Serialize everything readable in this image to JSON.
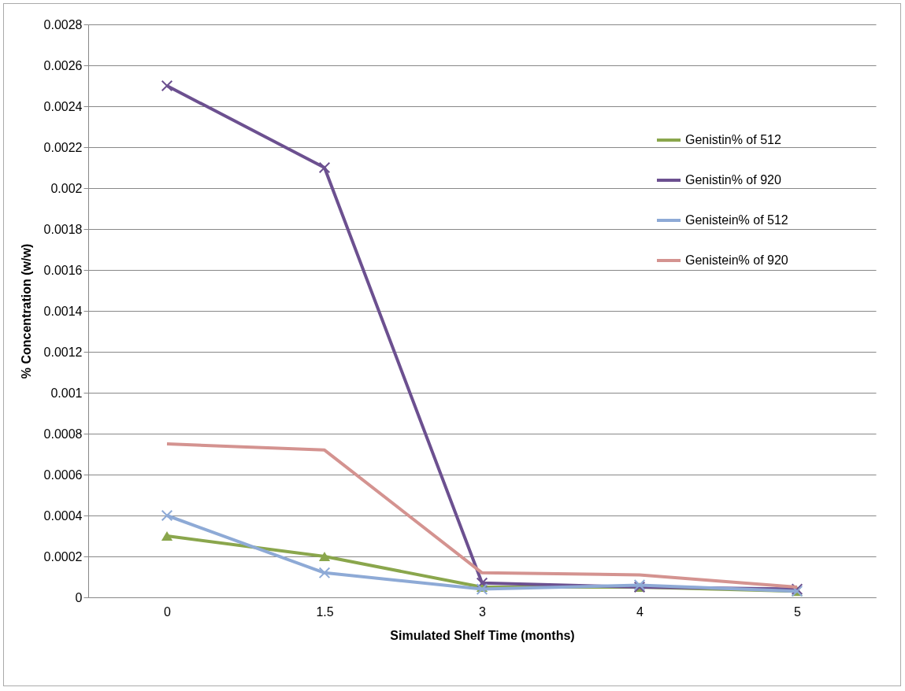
{
  "chart_data": {
    "type": "line",
    "xlabel": "Simulated Shelf Time (months)",
    "ylabel": "% Concentration (w/w)",
    "categories": [
      "0",
      "1.5",
      "3",
      "4",
      "5"
    ],
    "series": [
      {
        "name": "Genistin% of 512",
        "color": "#8aa64c",
        "marker": "triangle",
        "values": [
          0.0003,
          0.0002,
          5e-05,
          5e-05,
          3e-05
        ]
      },
      {
        "name": "Genistin% of 920",
        "color": "#6c5090",
        "marker": "cross",
        "values": [
          0.0025,
          0.0021,
          7e-05,
          5e-05,
          4e-05
        ]
      },
      {
        "name": "Genistein% of 512",
        "color": "#8eaad6",
        "marker": "cross",
        "values": [
          0.0004,
          0.00012,
          4e-05,
          6e-05,
          3e-05
        ]
      },
      {
        "name": "Genistein% of 920",
        "color": "#d49390",
        "marker": "none",
        "values": [
          0.00075,
          0.00072,
          0.00012,
          0.00011,
          5e-05
        ]
      }
    ],
    "ylim": [
      0,
      0.0028
    ],
    "yticks": [
      0,
      0.0002,
      0.0004,
      0.0006,
      0.0008,
      0.001,
      0.0012,
      0.0014,
      0.0016,
      0.0018,
      0.002,
      0.0022,
      0.0024,
      0.0026,
      0.0028
    ],
    "grid": "y",
    "legend": "right"
  }
}
